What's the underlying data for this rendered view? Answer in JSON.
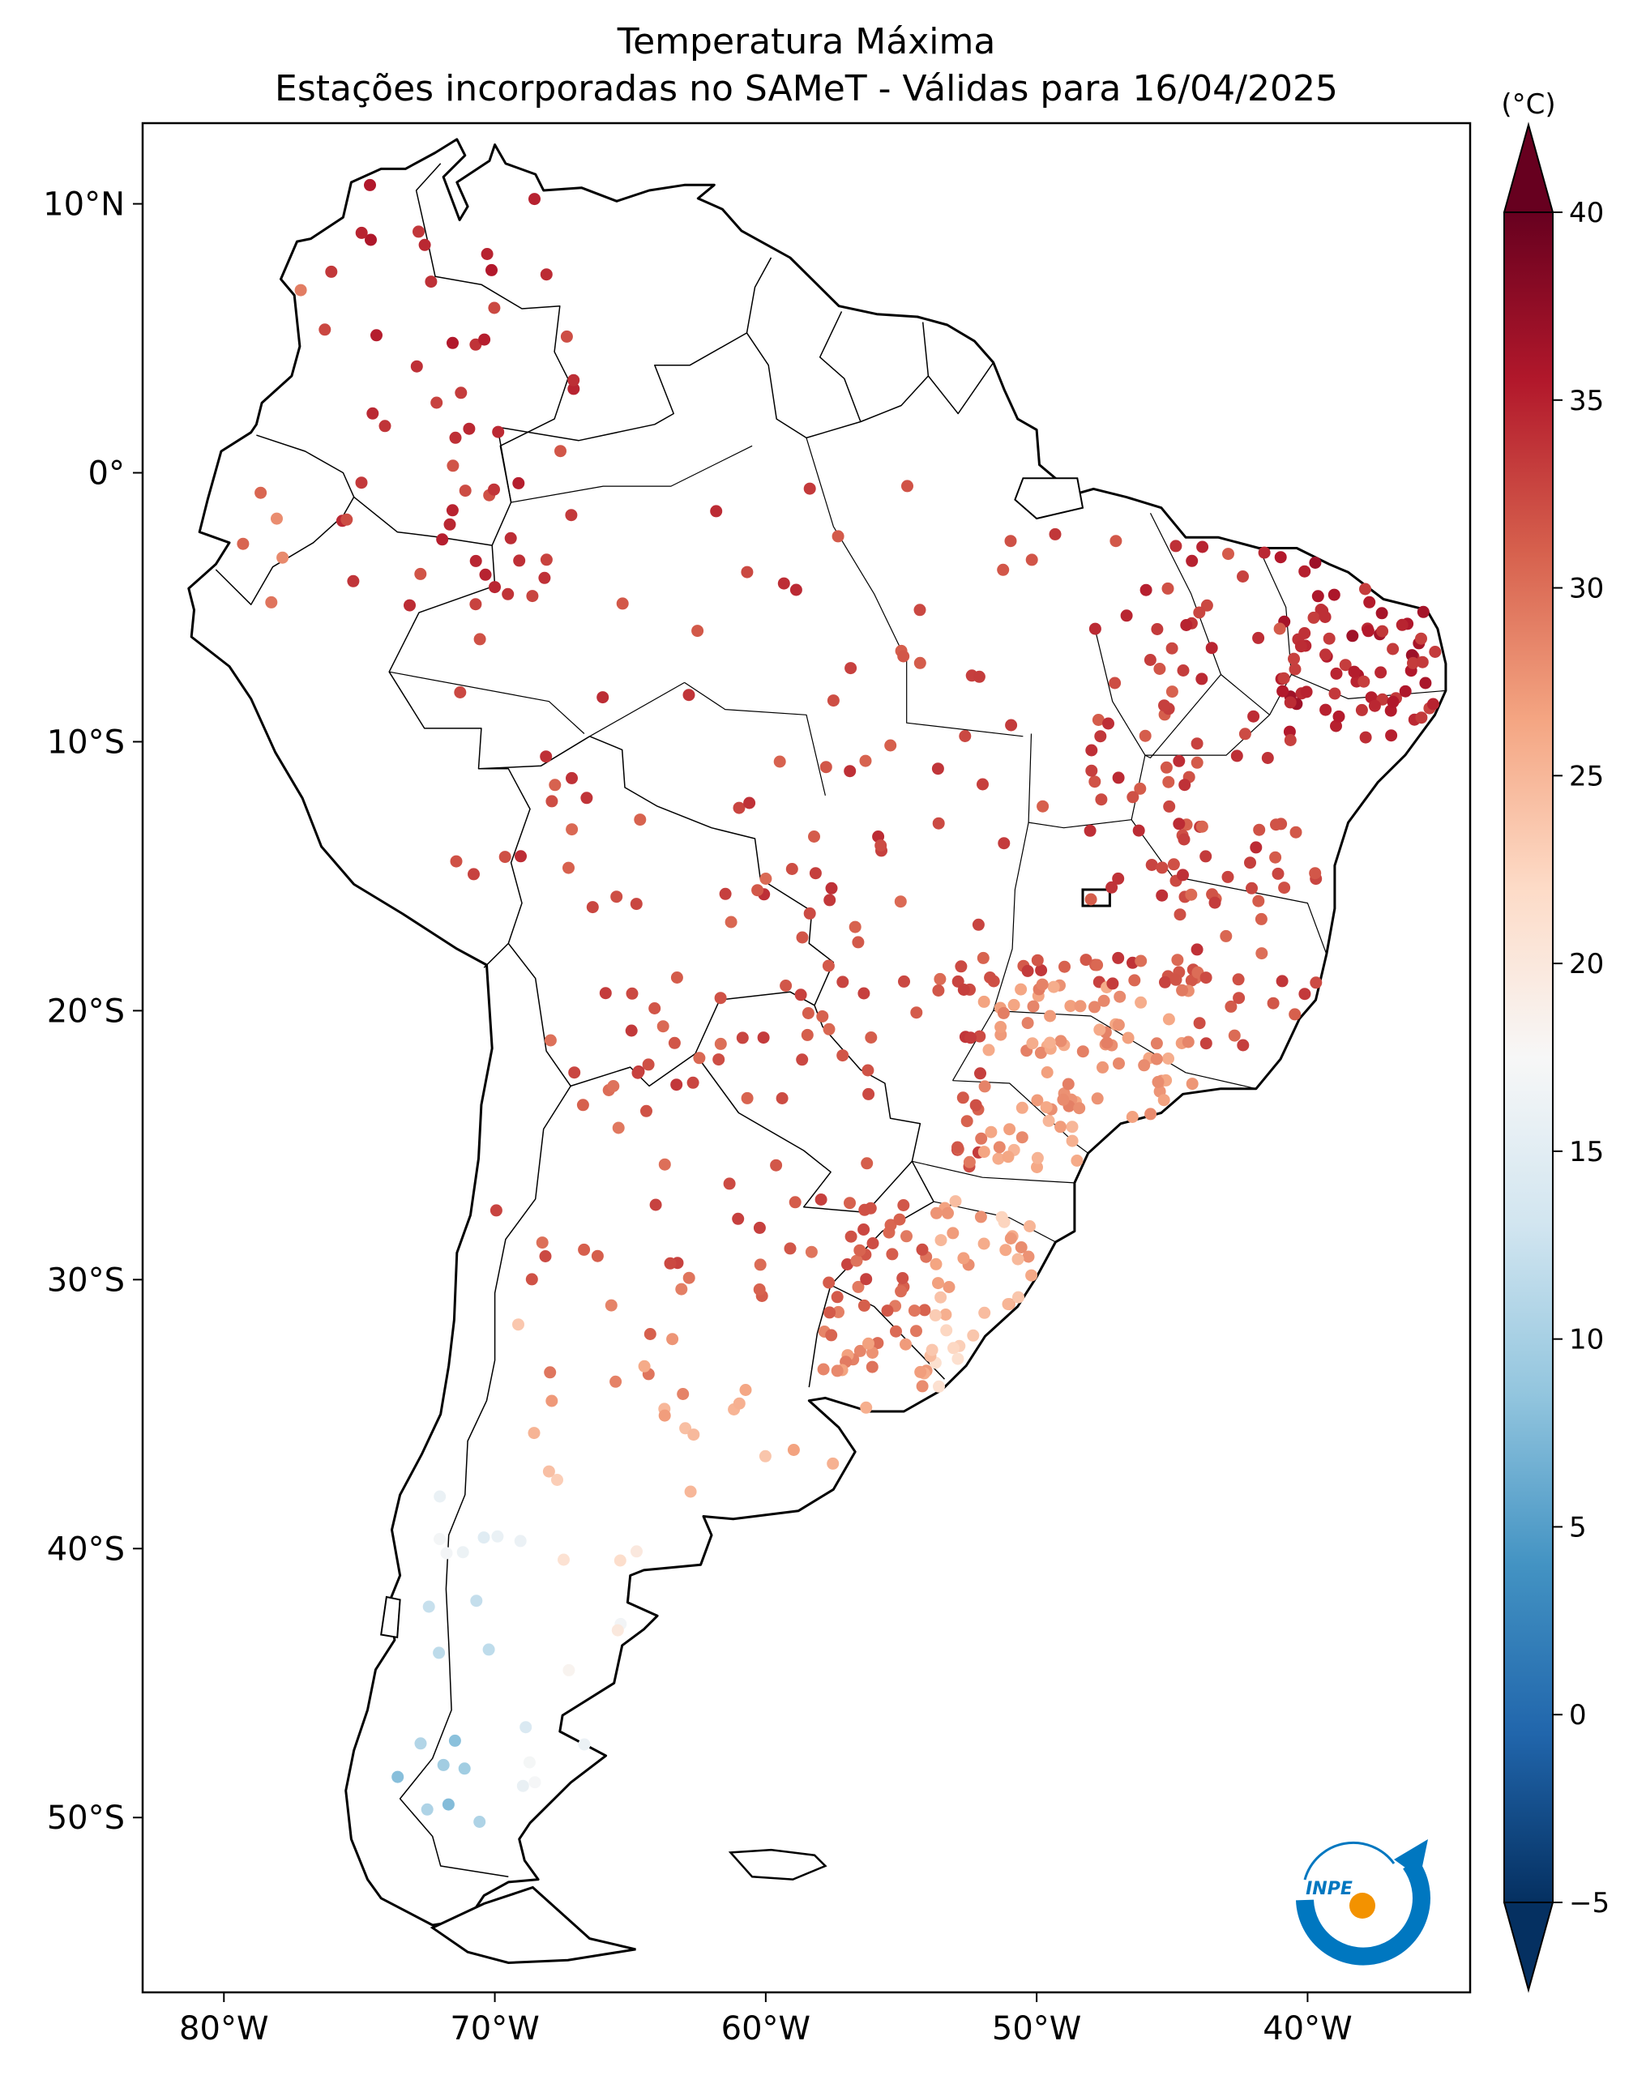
{
  "title_line1": "Temperatura Máxima",
  "title_line2": "Estações incorporadas no SAMeT - Válidas para 16/04/2025",
  "colorbar": {
    "unit": "(°C)",
    "ticks": [
      {
        "value": 40,
        "label": "40"
      },
      {
        "value": 35,
        "label": "35"
      },
      {
        "value": 30,
        "label": "30"
      },
      {
        "value": 25,
        "label": "25"
      },
      {
        "value": 20,
        "label": "20"
      },
      {
        "value": 15,
        "label": "15"
      },
      {
        "value": 10,
        "label": "10"
      },
      {
        "value": 5,
        "label": "5"
      },
      {
        "value": 0,
        "label": "0"
      },
      {
        "value": -5,
        "label": "−5"
      }
    ],
    "min": -5,
    "max": 40,
    "stops": [
      "#053061",
      "#2166ac",
      "#4393c3",
      "#92c5de",
      "#d1e5f0",
      "#f7f7f7",
      "#fddbc7",
      "#f4a582",
      "#d6604d",
      "#b2182b",
      "#67001f"
    ]
  },
  "map": {
    "lon_range": [
      -83,
      -34
    ],
    "lat_range": [
      -56.5,
      13
    ],
    "lon_ticks": [
      {
        "value": -80,
        "label": "80°W"
      },
      {
        "value": -70,
        "label": "70°W"
      },
      {
        "value": -60,
        "label": "60°W"
      },
      {
        "value": -50,
        "label": "50°W"
      },
      {
        "value": -40,
        "label": "40°W"
      }
    ],
    "lat_ticks": [
      {
        "value": 10,
        "label": "10°N"
      },
      {
        "value": 0,
        "label": "0°"
      },
      {
        "value": -10,
        "label": "10°S"
      },
      {
        "value": -20,
        "label": "20°S"
      },
      {
        "value": -30,
        "label": "30°S"
      },
      {
        "value": -40,
        "label": "40°S"
      },
      {
        "value": -50,
        "label": "50°S"
      }
    ]
  },
  "logo": {
    "text": "INPE",
    "colors": [
      "#0077c0",
      "#f39200"
    ]
  }
}
